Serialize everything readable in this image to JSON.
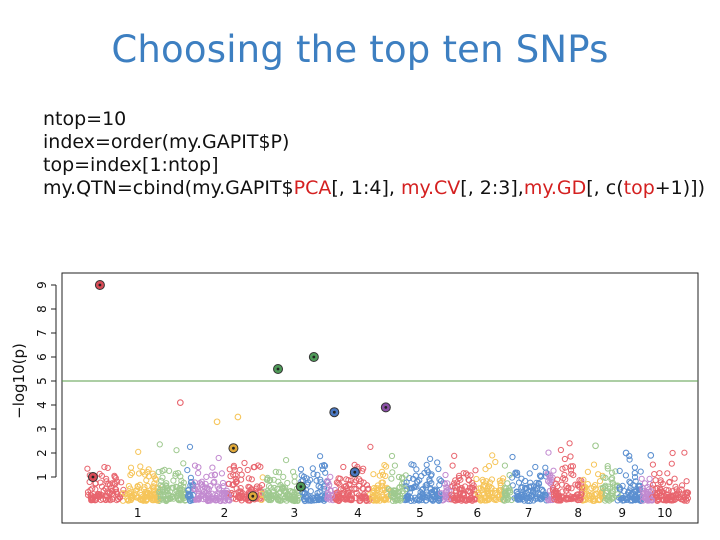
{
  "slide": {
    "title": "Choosing the top ten SNPs"
  },
  "code": {
    "line1": "ntop=10",
    "line2": "index=order(my.GAPIT$P)",
    "line3": "top=index[1:ntop]",
    "line4": {
      "p1": "my.QTN=cbind(my.GAPIT$",
      "p2": "PCA",
      "p3": "[, 1:4], ",
      "p4": "my.CV",
      "p5": "[, 2:3],",
      "p6": "my.GD",
      "p7": "[, c(",
      "p8": "top",
      "p9": "+1)])"
    }
  },
  "chart_data": {
    "type": "scatter",
    "ylabel": "−log10(p)",
    "y_ticks": [
      "1",
      "2",
      "3",
      "4",
      "5",
      "6",
      "7",
      "8",
      "9"
    ],
    "ylim": [
      0,
      9.5
    ],
    "threshold": 5.0,
    "chromosomes": [
      "1",
      "2",
      "3",
      "4",
      "5",
      "6",
      "7",
      "8",
      "9",
      "10"
    ],
    "colors": [
      "#e8656e",
      "#f6c55a",
      "#9fc98f",
      "#5b8fd0",
      "#c28ad0"
    ],
    "highlight_colors": {
      "red": "#d94b56",
      "green": "#4f9a58",
      "blue": "#4a78c2",
      "purple": "#8a4fa6"
    },
    "top_snps": [
      {
        "chr": 1,
        "pos": 0.12,
        "y": 9.0,
        "color": "red"
      },
      {
        "chr": 2,
        "pos": 0.62,
        "y": 2.2,
        "color": "yellow"
      },
      {
        "chr": 2,
        "pos": 0.88,
        "y": 0.2,
        "color": "yellow"
      },
      {
        "chr": 3,
        "pos": 0.25,
        "y": 5.5,
        "color": "green"
      },
      {
        "chr": 3,
        "pos": 0.8,
        "y": 6.0,
        "color": "green"
      },
      {
        "chr": 3,
        "pos": 0.6,
        "y": 0.6,
        "color": "green"
      },
      {
        "chr": 4,
        "pos": 0.12,
        "y": 3.7,
        "color": "blue"
      },
      {
        "chr": 4,
        "pos": 0.45,
        "y": 1.2,
        "color": "blue"
      },
      {
        "chr": 4,
        "pos": 0.95,
        "y": 3.9,
        "color": "purple"
      },
      {
        "chr": 1,
        "pos": 0.05,
        "y": 1.0,
        "color": "red"
      }
    ],
    "notable_points": [
      {
        "chr": 1,
        "pos": 0.93,
        "y": 4.1,
        "color": "red"
      },
      {
        "chr": 2,
        "pos": 0.68,
        "y": 3.5,
        "color": "yellow"
      },
      {
        "chr": 2,
        "pos": 0.4,
        "y": 3.3,
        "color": "yellow"
      },
      {
        "chr": 8,
        "pos": 0.85,
        "y": 2.3,
        "color": "green"
      },
      {
        "chr": 9,
        "pos": 0.6,
        "y": 2.0,
        "color": "blue"
      },
      {
        "chr": 10,
        "pos": 0.2,
        "y": 1.9,
        "color": "blue"
      }
    ],
    "grid": false,
    "legend": "none"
  }
}
